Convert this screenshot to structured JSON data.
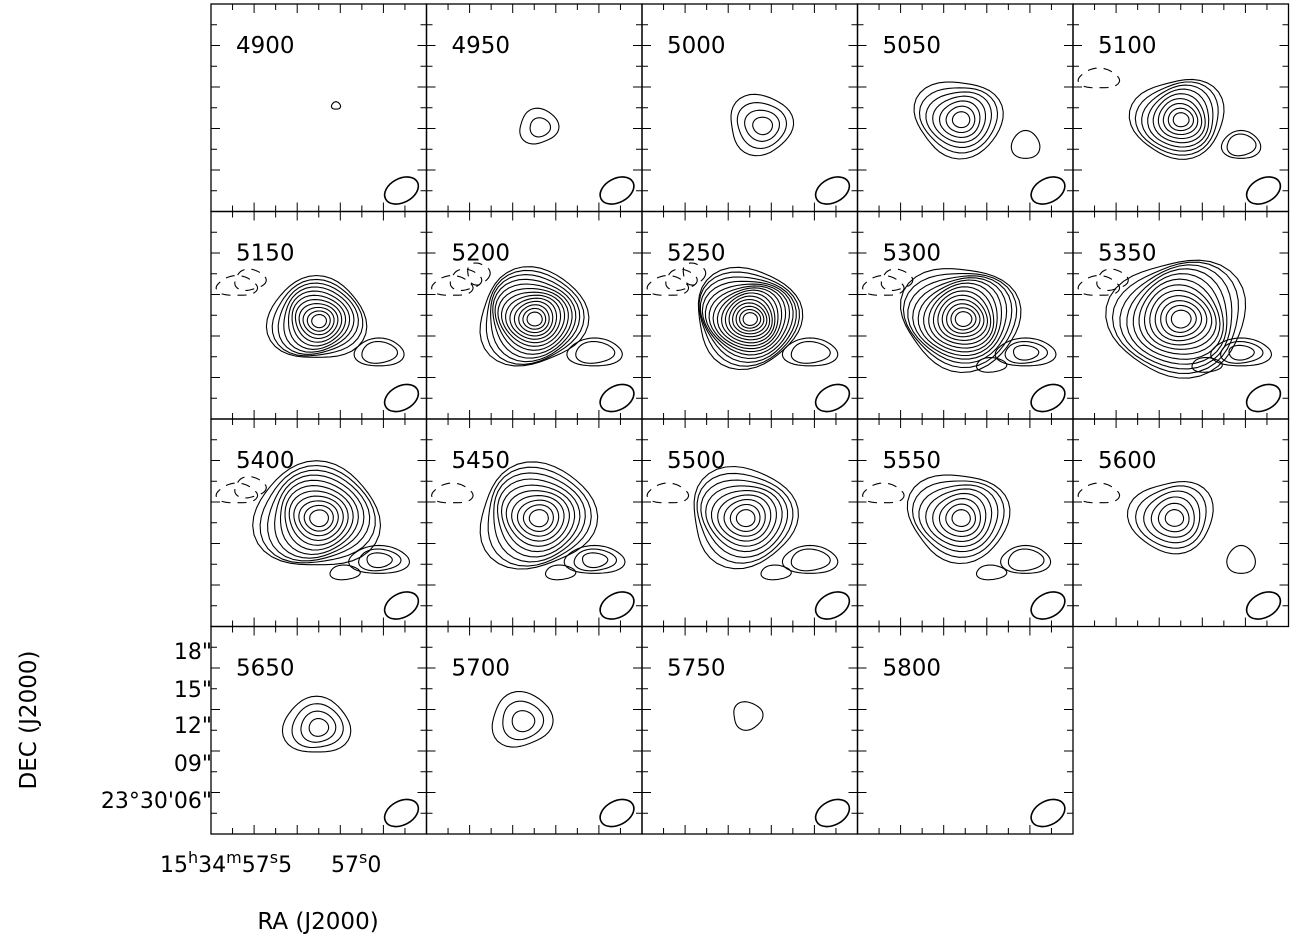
{
  "chart_data": {
    "type": "contour",
    "xlabel": "RA (J2000)",
    "ylabel": "DEC (J2000)",
    "x_ticks": [
      {
        "main": "15",
        "sup1": "h",
        "part2": "34",
        "sup2": "m",
        "part3": "57",
        "sup3": "s",
        "part4": "5"
      },
      {
        "main": "57",
        "sup3": "s",
        "part4": "0"
      }
    ],
    "y_ticks": [
      "18\"",
      "15\"",
      "12\"",
      "09\"",
      "23°30'06\""
    ],
    "y_tick_values": [
      18,
      15,
      12,
      9,
      6
    ],
    "layout": {
      "columns": 5,
      "rows": 4
    },
    "panels": [
      {
        "label": "4900",
        "col": 0,
        "row": 0,
        "nlev": 1,
        "peak": [
          0.58,
          0.49
        ],
        "size": 0.02,
        "comp2": 0,
        "comp3": 0,
        "negs": 0
      },
      {
        "label": "4950",
        "col": 1,
        "row": 0,
        "nlev": 2,
        "peak": [
          0.52,
          0.59
        ],
        "size": 0.09,
        "comp2": 0,
        "comp3": 0,
        "negs": 0
      },
      {
        "label": "5000",
        "col": 2,
        "row": 0,
        "nlev": 4,
        "peak": [
          0.55,
          0.58
        ],
        "size": 0.15,
        "comp2": 0,
        "comp3": 0,
        "negs": 0
      },
      {
        "label": "5050",
        "col": 3,
        "row": 0,
        "nlev": 7,
        "peak": [
          0.47,
          0.55
        ],
        "size": 0.2,
        "comp2": 0.3,
        "comp3": 0,
        "negs": 0
      },
      {
        "label": "5100",
        "col": 4,
        "row": 0,
        "nlev": 9,
        "peak": [
          0.49,
          0.55
        ],
        "size": 0.21,
        "comp2": 0.5,
        "comp3": 0,
        "negs": 1
      },
      {
        "label": "5150",
        "col": 0,
        "row": 1,
        "nlev": 11,
        "peak": [
          0.49,
          0.52
        ],
        "size": 0.22,
        "comp2": 0.7,
        "comp3": 0,
        "negs": 2
      },
      {
        "label": "5200",
        "col": 1,
        "row": 1,
        "nlev": 13,
        "peak": [
          0.49,
          0.51
        ],
        "size": 0.25,
        "comp2": 0.8,
        "comp3": 0,
        "negs": 3
      },
      {
        "label": "5250",
        "col": 2,
        "row": 1,
        "nlev": 15,
        "peak": [
          0.49,
          0.51
        ],
        "size": 0.25,
        "comp2": 0.8,
        "comp3": 0,
        "negs": 3
      },
      {
        "label": "5300",
        "col": 3,
        "row": 1,
        "nlev": 13,
        "peak": [
          0.48,
          0.51
        ],
        "size": 0.27,
        "comp2": 0.9,
        "comp3": 0.4,
        "negs": 2
      },
      {
        "label": "5350",
        "col": 4,
        "row": 1,
        "nlev": 12,
        "peak": [
          0.49,
          0.51
        ],
        "size": 0.31,
        "comp2": 0.9,
        "comp3": 0.3,
        "negs": 2
      },
      {
        "label": "5400",
        "col": 0,
        "row": 2,
        "nlev": 11,
        "peak": [
          0.49,
          0.47
        ],
        "size": 0.28,
        "comp2": 0.9,
        "comp3": 0.4,
        "negs": 2
      },
      {
        "label": "5450",
        "col": 1,
        "row": 2,
        "nlev": 10,
        "peak": [
          0.51,
          0.47
        ],
        "size": 0.27,
        "comp2": 0.9,
        "comp3": 0.3,
        "negs": 1
      },
      {
        "label": "5500",
        "col": 2,
        "row": 2,
        "nlev": 9,
        "peak": [
          0.47,
          0.47
        ],
        "size": 0.25,
        "comp2": 0.8,
        "comp3": 0.3,
        "negs": 1
      },
      {
        "label": "5550",
        "col": 3,
        "row": 2,
        "nlev": 8,
        "peak": [
          0.47,
          0.47
        ],
        "size": 0.23,
        "comp2": 0.7,
        "comp3": 0.3,
        "negs": 1
      },
      {
        "label": "5600",
        "col": 4,
        "row": 2,
        "nlev": 6,
        "peak": [
          0.46,
          0.47
        ],
        "size": 0.19,
        "comp2": 0.3,
        "comp3": 0,
        "negs": 1
      },
      {
        "label": "5650",
        "col": 0,
        "row": 3,
        "nlev": 4,
        "peak": [
          0.49,
          0.48
        ],
        "size": 0.15,
        "comp2": 0,
        "comp3": 0,
        "negs": 0
      },
      {
        "label": "5700",
        "col": 1,
        "row": 3,
        "nlev": 3,
        "peak": [
          0.44,
          0.45
        ],
        "size": 0.14,
        "comp2": 0,
        "comp3": 0,
        "negs": 0
      },
      {
        "label": "5750",
        "col": 2,
        "row": 3,
        "nlev": 1,
        "peak": [
          0.49,
          0.43
        ],
        "size": 0.07,
        "comp2": 0,
        "comp3": 0,
        "negs": 0
      },
      {
        "label": "5800",
        "col": 3,
        "row": 3,
        "nlev": 0,
        "peak": [
          0.5,
          0.5
        ],
        "size": 0,
        "comp2": 0,
        "comp3": 0,
        "negs": 0
      }
    ],
    "beam": {
      "shape": "ellipse",
      "position": "bottom-right"
    }
  }
}
